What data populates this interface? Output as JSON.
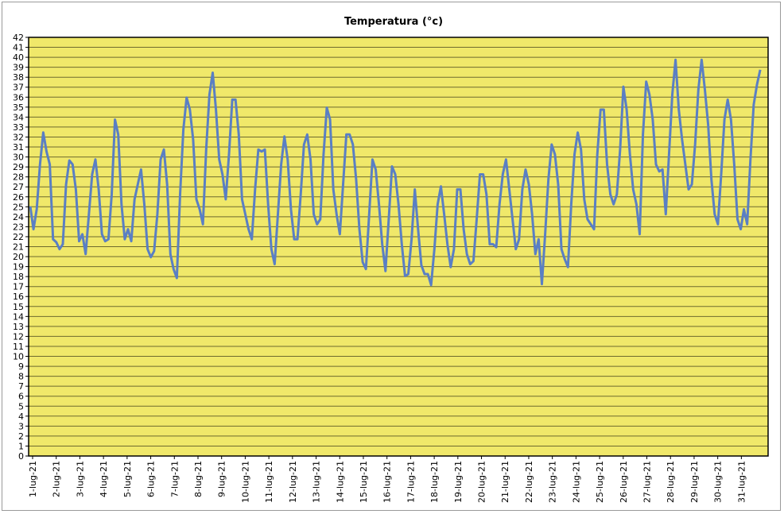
{
  "chart_data": {
    "type": "line",
    "title": "Temperatura (°c)",
    "xlabel": "",
    "ylabel": "",
    "ylim": [
      0,
      42
    ],
    "y_tick_step": 1,
    "grid": true,
    "legend": "none",
    "colors": {
      "plot_background": "#F0E86A",
      "grid": "#6E6A2E",
      "line": "#5A7FC4",
      "axis": "#000000"
    },
    "x_tick_labels": [
      "1-lug-21",
      "2-lug-21",
      "3-lug-21",
      "4-lug-21",
      "5-lug-21",
      "6-lug-21",
      "7-lug-21",
      "8-lug-21",
      "9-lug-21",
      "10-lug-21",
      "11-lug-21",
      "12-lug-21",
      "13-lug-21",
      "14-lug-21",
      "15-lug-21",
      "16-lug-21",
      "17-lug-21",
      "18-lug-21",
      "19-lug-21",
      "20-lug-21",
      "21-lug-21",
      "22-lug-21",
      "23-lug-21",
      "24-lug-21",
      "25-lug-21",
      "26-lug-21",
      "27-lug-21",
      "28-lug-21",
      "29-lug-21",
      "30-lug-21",
      "31-lug-21"
    ],
    "series": [
      {
        "values": [
          24.8,
          23.0,
          24.5,
          29.5,
          32.2,
          30.8,
          29.0,
          22.0,
          21.2,
          21.0,
          21.0,
          27.5,
          29.4,
          29.5,
          26.5,
          21.8,
          22.0,
          20.5,
          24.0,
          28.5,
          29.5,
          27.0,
          22.0,
          21.8,
          21.5,
          26.5,
          33.5,
          32.5,
          25.0,
          22.0,
          22.5,
          21.8,
          25.5,
          27.5,
          28.5,
          25.5,
          20.5,
          20.2,
          20.3,
          24.5,
          29.5,
          31.0,
          27.0,
          20.5,
          18.5,
          18.1,
          26.0,
          33.0,
          35.7,
          35.0,
          31.5,
          26.0,
          24.5,
          23.5,
          30.5,
          36.5,
          38.2,
          35.0,
          29.5,
          28.5,
          25.5,
          30.5,
          35.5,
          36.0,
          32.0,
          26.0,
          24.0,
          23.0,
          21.5,
          27.0,
          30.5,
          30.8,
          30.5,
          25.5,
          20.5,
          19.5,
          24.0,
          29.5,
          31.8,
          30.0,
          24.5,
          22.0,
          21.5,
          26.5,
          31.0,
          32.5,
          29.5,
          24.5,
          23.0,
          24.0,
          30.0,
          35.2,
          33.5,
          27.0,
          24.0,
          22.5,
          27.0,
          32.5,
          32.0,
          31.5,
          27.5,
          23.0,
          19.2,
          19.0,
          24.0,
          30.0,
          28.5,
          25.5,
          21.0,
          18.8,
          23.5,
          29.3,
          28.0,
          25.5,
          21.0,
          18.3,
          18.0,
          22.0,
          26.5,
          23.0,
          18.9,
          18.5,
          18.0,
          17.4,
          20.5,
          25.5,
          26.8,
          24.5,
          21.0,
          19.2,
          20.5,
          27.0,
          26.5,
          23.0,
          20.0,
          19.5,
          19.3,
          24.0,
          28.0,
          28.5,
          26.0,
          21.5,
          21.0,
          21.2,
          25.0,
          28.5,
          29.5,
          27.0,
          23.5,
          21.0,
          21.5,
          27.0,
          28.5,
          27.5,
          24.0,
          20.5,
          21.5,
          17.5,
          22.0,
          28.0,
          31.0,
          30.5,
          27.0,
          21.0,
          19.5,
          19.2,
          25.0,
          30.5,
          32.2,
          31.0,
          25.5,
          24.0,
          23.0,
          23.0,
          30.0,
          35.0,
          34.5,
          29.5,
          26.0,
          25.5,
          26.0,
          31.0,
          36.8,
          35.0,
          30.0,
          27.0,
          25.0,
          22.5,
          32.0,
          37.8,
          36.0,
          34.0,
          29.0,
          28.8,
          28.5,
          24.5,
          30.0,
          36.5,
          39.5,
          35.0,
          31.5,
          29.5,
          26.5,
          27.5,
          31.0,
          37.0,
          39.5,
          37.0,
          33.0,
          28.0,
          24.0,
          23.5,
          28.0,
          34.0,
          35.5,
          34.0,
          29.0,
          24.0,
          22.5,
          25.0,
          23.0,
          30.0,
          35.0,
          37.5,
          38.5
        ]
      }
    ]
  }
}
